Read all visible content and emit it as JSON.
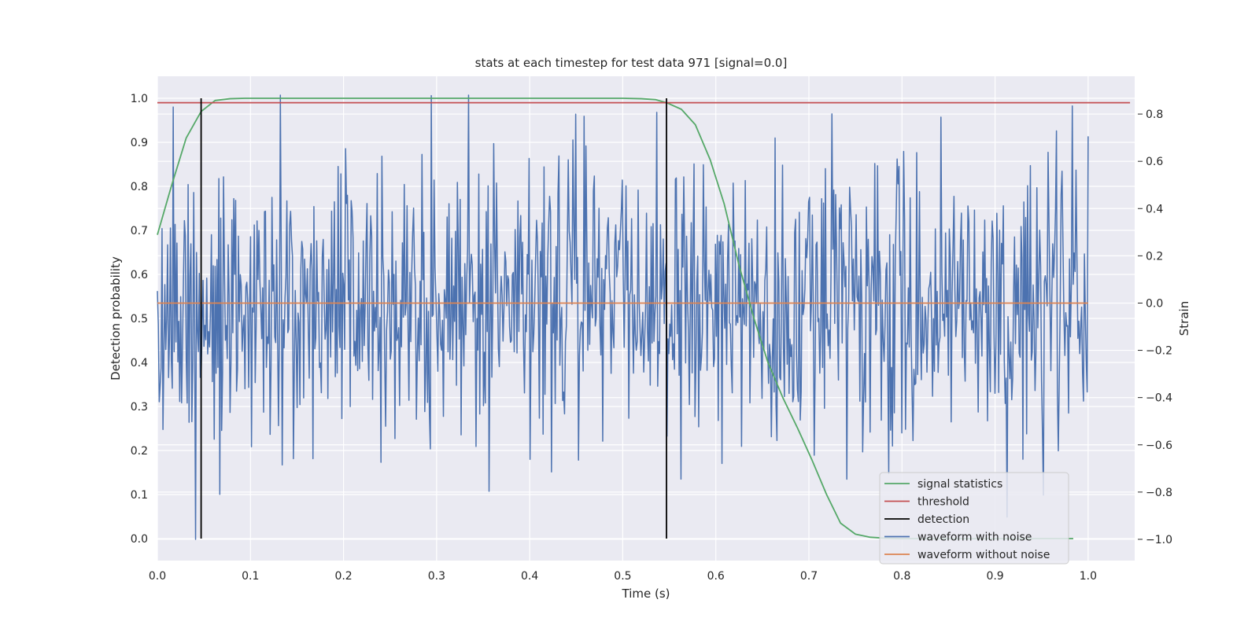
{
  "chart_data": {
    "type": "line",
    "title": "stats at each timestep for test data 971 [signal=0.0]",
    "xlabel": "Time (s)",
    "ylabel_left": "Detection probability",
    "ylabel_right": "Strain",
    "xlim": [
      0.0,
      1.05
    ],
    "ylim_left": [
      -0.05,
      1.05
    ],
    "ylim_right": [
      -1.09,
      0.96
    ],
    "x_ticks": [
      "0.0",
      "0.1",
      "0.2",
      "0.3",
      "0.4",
      "0.5",
      "0.6",
      "0.7",
      "0.8",
      "0.9",
      "1.0"
    ],
    "y_ticks_left": [
      "0.0",
      "0.1",
      "0.2",
      "0.3",
      "0.4",
      "0.5",
      "0.6",
      "0.7",
      "0.8",
      "0.9",
      "1.0"
    ],
    "y_ticks_right": [
      "−1.0",
      "−0.8",
      "−0.6",
      "−0.4",
      "−0.2",
      "0.0",
      "0.2",
      "0.4",
      "0.6",
      "0.8"
    ],
    "grid": true,
    "legend_position": "lower-right",
    "series": [
      {
        "name": "signal statistics",
        "axis": "left",
        "color": "#55a868",
        "x": [
          0.0,
          0.015,
          0.031,
          0.047,
          0.062,
          0.078,
          0.094,
          0.109,
          0.2,
          0.3,
          0.4,
          0.5,
          0.52,
          0.535,
          0.547,
          0.563,
          0.578,
          0.594,
          0.609,
          0.625,
          0.641,
          0.656,
          0.672,
          0.688,
          0.703,
          0.719,
          0.734,
          0.75,
          0.766,
          0.781,
          0.797,
          0.85,
          0.9,
          0.95,
          0.984
        ],
        "y": [
          0.69,
          0.8,
          0.91,
          0.97,
          0.995,
          0.999,
          1.0,
          1.0,
          1.0,
          1.0,
          1.0,
          1.0,
          0.999,
          0.997,
          0.99,
          0.975,
          0.94,
          0.86,
          0.76,
          0.62,
          0.5,
          0.4,
          0.32,
          0.25,
          0.18,
          0.1,
          0.035,
          0.01,
          0.003,
          0.001,
          0.0,
          0.0,
          0.0,
          0.0,
          0.0
        ]
      },
      {
        "name": "threshold",
        "axis": "left",
        "color": "#c44e52",
        "x": [
          0.0,
          1.045
        ],
        "y": [
          0.99,
          0.99
        ]
      },
      {
        "name": "detection",
        "axis": "left",
        "color": "#000000",
        "segments": [
          {
            "x": 0.047,
            "y0": 0.0,
            "y1": 1.0
          },
          {
            "x": 0.547,
            "y0": 0.0,
            "y1": 1.0
          }
        ]
      },
      {
        "name": "waveform with noise",
        "axis": "right",
        "color": "#4c72b0",
        "x_range": [
          0.0,
          1.0
        ],
        "points": 1000,
        "y_range": [
          -1.0,
          0.88
        ],
        "note_style": "dense noise"
      },
      {
        "name": "waveform without noise",
        "axis": "right",
        "color": "#dd8452",
        "x": [
          0.0,
          1.0
        ],
        "y": [
          0.0,
          0.0
        ]
      }
    ]
  }
}
